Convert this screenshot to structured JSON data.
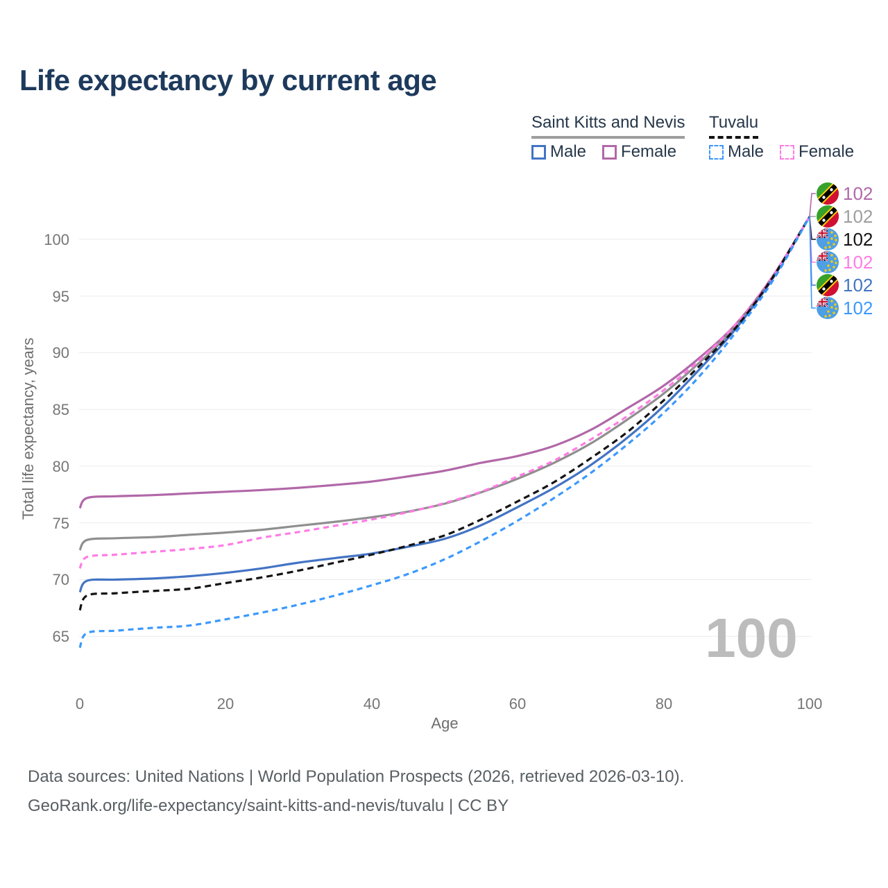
{
  "title": "Life expectancy by current age",
  "legend": {
    "groups": [
      {
        "label": "Saint Kitts and Nevis",
        "line_color": "#9e9e9e",
        "line_style": "solid"
      },
      {
        "label": "Tuvalu",
        "line_color": "#111111",
        "line_style": "dashed"
      }
    ],
    "items": [
      {
        "label": "Male",
        "color": "#4374c4",
        "style": "solid"
      },
      {
        "label": "Female",
        "color": "#b168a8",
        "style": "solid"
      },
      {
        "label": "Male",
        "color": "#3b99fc",
        "style": "dashed"
      },
      {
        "label": "Female",
        "color": "#ff7ce4",
        "style": "dashed"
      }
    ]
  },
  "chart_data": {
    "type": "line",
    "title": "Life expectancy by current age",
    "xlabel": "Age",
    "ylabel": "Total life expectancy, years",
    "xlim": [
      0,
      100
    ],
    "ylim": [
      63,
      103.5
    ],
    "grid": "horizontal",
    "legend_position": "top-right",
    "x_ticks": [
      "0",
      "20",
      "40",
      "60",
      "80",
      "100"
    ],
    "y_ticks": [
      "65",
      "70",
      "75",
      "80",
      "85",
      "90",
      "95",
      "100"
    ],
    "hover_age_watermark": "100",
    "x": [
      0,
      1,
      5,
      10,
      15,
      20,
      25,
      30,
      35,
      40,
      45,
      50,
      55,
      60,
      65,
      70,
      75,
      80,
      85,
      90,
      95,
      100
    ],
    "series": [
      {
        "name": "Saint Kitts and Nevis — Female",
        "country": "Saint Kitts and Nevis",
        "sex": "Female",
        "color": "#b168a8",
        "dash": "",
        "values": [
          76.3,
          77.2,
          77.35,
          77.45,
          77.6,
          77.75,
          77.9,
          78.1,
          78.35,
          78.65,
          79.1,
          79.6,
          80.3,
          80.9,
          81.8,
          83.2,
          85.1,
          87.1,
          89.6,
          92.6,
          96.8,
          102
        ]
      },
      {
        "name": "Saint Kitts and Nevis — Both sexes",
        "country": "Saint Kitts and Nevis",
        "sex": "Both",
        "color": "#8f8f8f",
        "dash": "",
        "values": [
          72.6,
          73.5,
          73.65,
          73.75,
          73.95,
          74.15,
          74.4,
          74.75,
          75.1,
          75.5,
          76.0,
          76.7,
          77.7,
          78.9,
          80.3,
          82.0,
          84.1,
          86.4,
          89.2,
          92.4,
          96.7,
          102
        ]
      },
      {
        "name": "Saint Kitts and Nevis — Male",
        "country": "Saint Kitts and Nevis",
        "sex": "Male",
        "color": "#4374c4",
        "dash": "",
        "values": [
          68.9,
          69.9,
          70.0,
          70.1,
          70.3,
          70.6,
          71.0,
          71.5,
          71.9,
          72.3,
          72.9,
          73.6,
          74.8,
          76.4,
          78.1,
          80.1,
          82.5,
          85.3,
          88.6,
          92.2,
          96.6,
          102
        ]
      },
      {
        "name": "Tuvalu — Female",
        "country": "Tuvalu",
        "sex": "Female",
        "color": "#ff7ce4",
        "dash": "8 6",
        "values": [
          71.0,
          72.0,
          72.2,
          72.45,
          72.7,
          73.05,
          73.7,
          74.2,
          74.75,
          75.3,
          75.95,
          76.75,
          77.75,
          79.1,
          80.5,
          82.35,
          84.4,
          86.7,
          89.4,
          92.6,
          96.8,
          102
        ]
      },
      {
        "name": "Tuvalu — Both sexes",
        "country": "Tuvalu",
        "sex": "Both",
        "color": "#141414",
        "dash": "9 6",
        "values": [
          67.3,
          68.6,
          68.8,
          69.0,
          69.2,
          69.7,
          70.2,
          70.8,
          71.5,
          72.2,
          73.0,
          73.9,
          75.3,
          76.9,
          78.6,
          80.7,
          83.0,
          85.8,
          88.9,
          92.3,
          96.7,
          102
        ]
      },
      {
        "name": "Tuvalu — Male",
        "country": "Tuvalu",
        "sex": "Male",
        "color": "#3b99fc",
        "dash": "8 6",
        "values": [
          64.0,
          65.3,
          65.5,
          65.75,
          65.95,
          66.5,
          67.1,
          67.8,
          68.6,
          69.5,
          70.5,
          71.8,
          73.4,
          75.2,
          77.2,
          79.4,
          81.9,
          84.7,
          88.0,
          91.9,
          96.4,
          102
        ]
      }
    ],
    "end_labels": [
      {
        "text": "102",
        "color": "#b168a8",
        "flag": "skn"
      },
      {
        "text": "102",
        "color": "#9e9e9e",
        "flag": "skn"
      },
      {
        "text": "102",
        "color": "#141414",
        "flag": "tuv"
      },
      {
        "text": "102",
        "color": "#ff7ce4",
        "flag": "tuv"
      },
      {
        "text": "102",
        "color": "#4374c4",
        "flag": "skn"
      },
      {
        "text": "102",
        "color": "#3b99fc",
        "flag": "tuv"
      }
    ]
  },
  "footer": {
    "lines": [
      "Data sources: United Nations | World Population Prospects (2026, retrieved 2026-03-10).",
      "GeoRank.org/life-expectancy/saint-kitts-and-nevis/tuvalu | CC BY"
    ]
  }
}
